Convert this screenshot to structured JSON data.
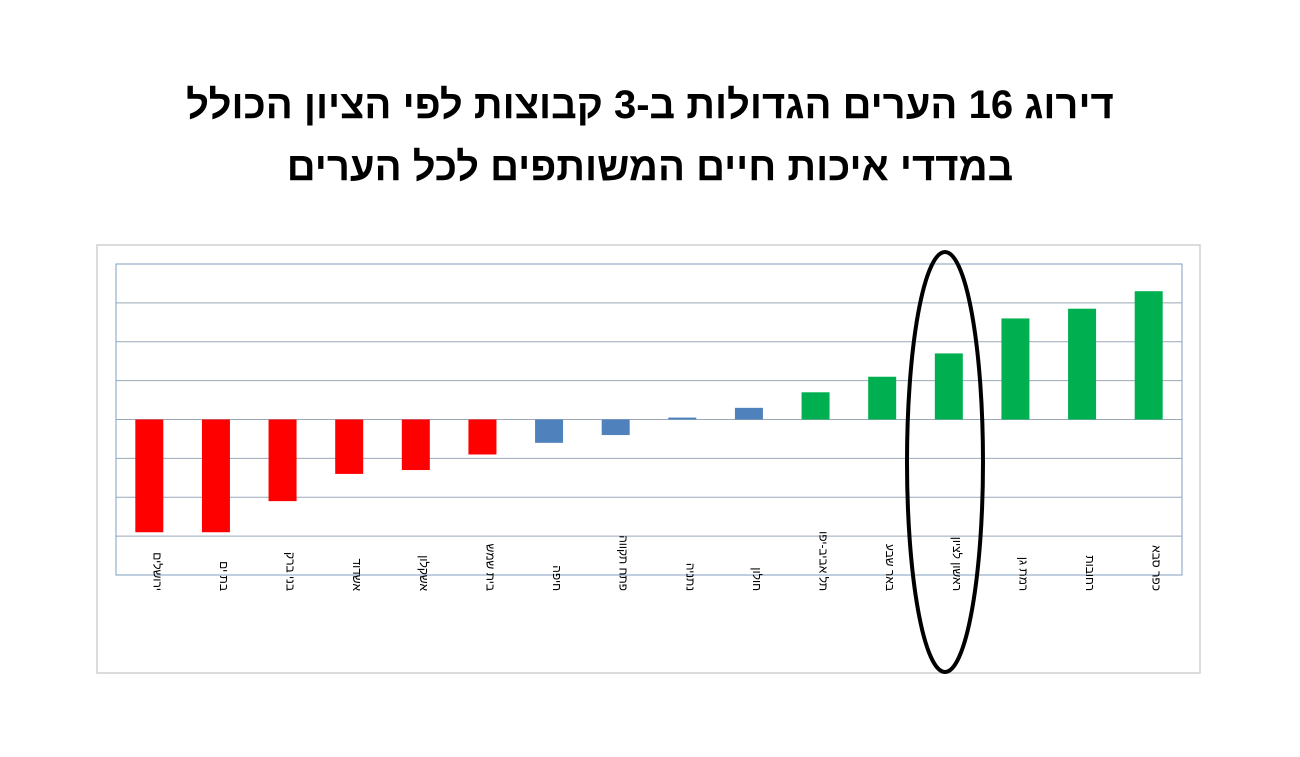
{
  "chart_data": {
    "type": "bar",
    "title_lines": [
      "דירוג 16 הערים הגדולות ב-3 קבוצות לפי הציון הכולל",
      "במדדי איכות חיים המשותפים לכל הערים"
    ],
    "categories": [
      "ירושלים",
      "בת ים",
      "בני ברק",
      "אשדוד",
      "אשקלון",
      "בית שמש",
      "חיפה",
      "פתח תקווה",
      "נתניה",
      "חולון",
      "תל אביב-יפו",
      "באר שבע",
      "ראשון לציון",
      "רמת גן",
      "רחובות",
      "כפר סבא"
    ],
    "values": [
      -2.9,
      -2.9,
      -2.1,
      -1.4,
      -1.3,
      -0.9,
      -0.6,
      -0.4,
      0.05,
      0.3,
      0.7,
      1.1,
      1.7,
      2.6,
      2.85,
      3.3
    ],
    "colors": [
      "#ff0000",
      "#ff0000",
      "#ff0000",
      "#ff0000",
      "#ff0000",
      "#ff0000",
      "#4f81bd",
      "#4f81bd",
      "#4f81bd",
      "#4f81bd",
      "#00b050",
      "#00b050",
      "#00b050",
      "#00b050",
      "#00b050",
      "#00b050"
    ],
    "ylim": [
      -4,
      4
    ],
    "yticks": [
      -4,
      -3,
      -2,
      -1,
      0,
      1,
      2,
      3,
      4
    ],
    "grid": true
  }
}
